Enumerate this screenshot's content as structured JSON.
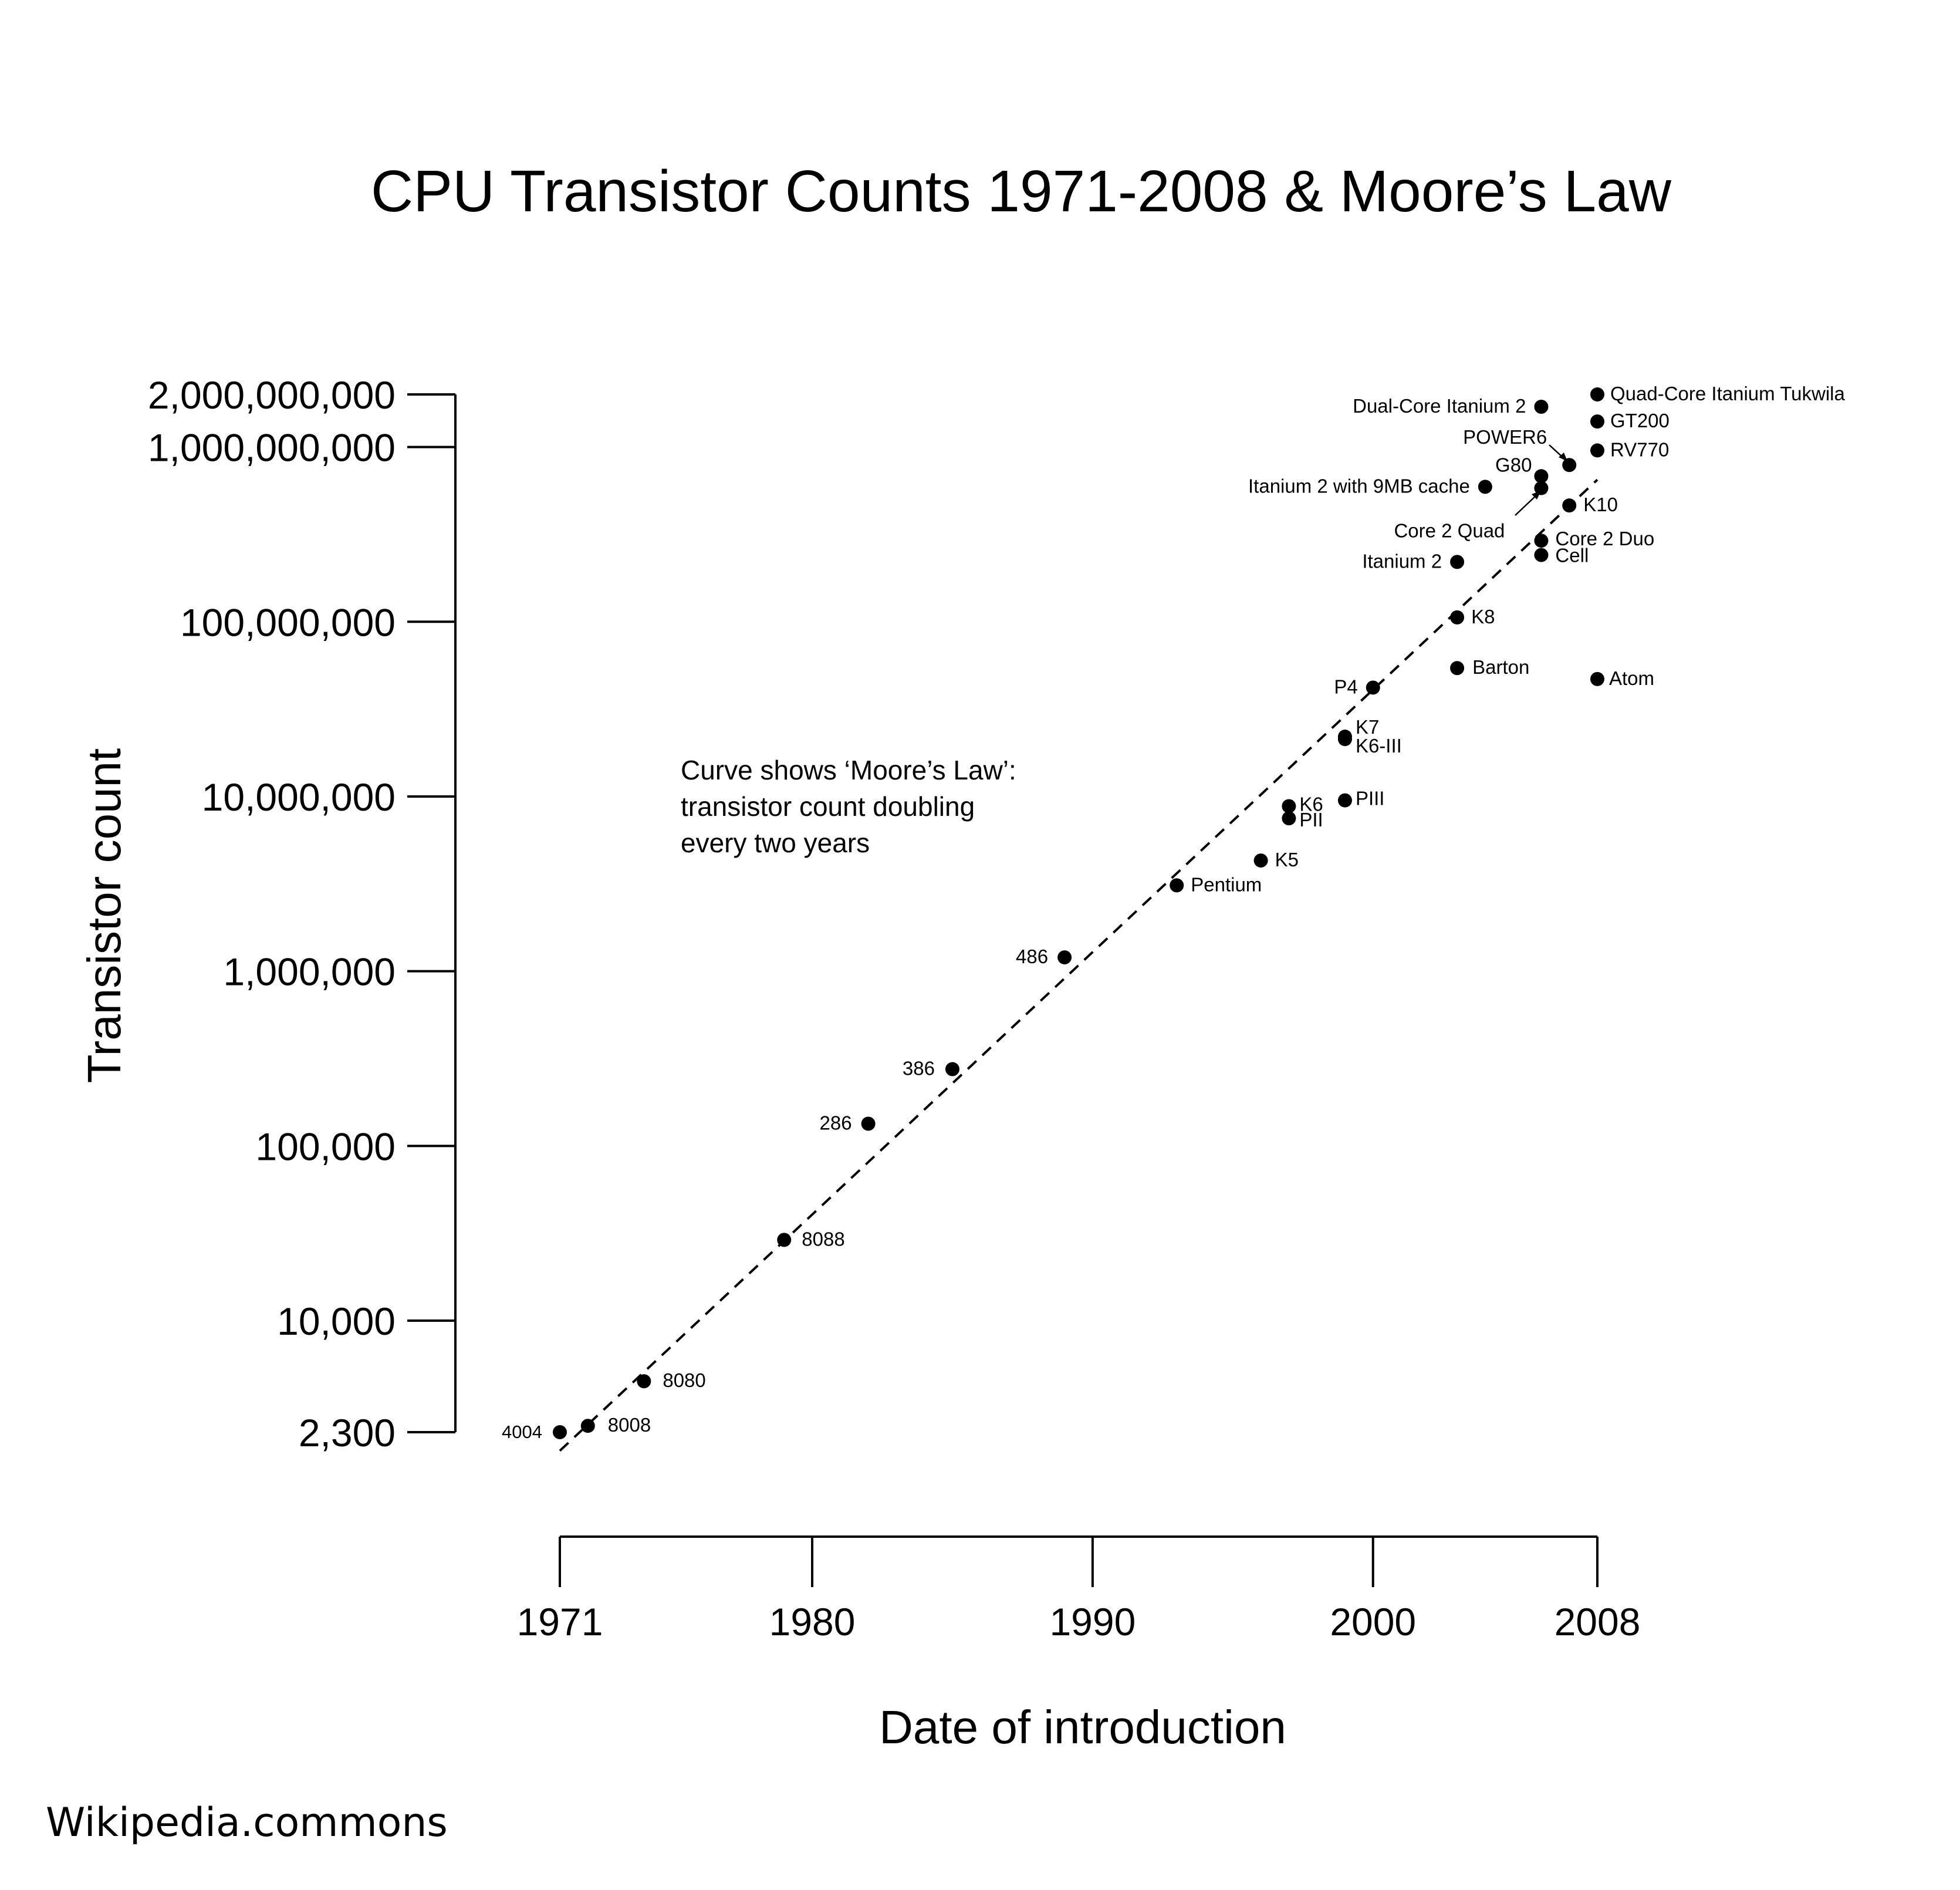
{
  "chart_data": {
    "type": "scatter",
    "title": "CPU Transistor Counts 1971-2008 & Moore’s Law",
    "xlabel": "Date of introduction",
    "ylabel": "Transistor count",
    "y_scale": "log",
    "xlim": [
      1971,
      2008
    ],
    "ylim": [
      2300,
      2000000000
    ],
    "x_ticks": [
      1971,
      1980,
      1990,
      2000,
      2008
    ],
    "x_tick_labels": [
      "1971",
      "1980",
      "1990",
      "2000",
      "2008"
    ],
    "y_ticks": [
      2300,
      10000,
      100000,
      1000000,
      10000000,
      100000000,
      1000000000,
      2000000000
    ],
    "y_tick_labels": [
      "2,300",
      "10,000",
      "100,000",
      "1,000,000",
      "10,000,000",
      "100,000,000",
      "1,000,000,000",
      "2,000,000,000"
    ],
    "annotation": [
      "Curve shows ‘Moore’s Law’:",
      "transistor count doubling",
      "every two years"
    ],
    "trend_line": {
      "style": "dashed",
      "from": {
        "x": 1971,
        "y": 1800
      },
      "to": {
        "x": 2008,
        "y": 650000000
      }
    },
    "points": [
      {
        "label": "4004",
        "x": 1971.0,
        "y": 2300
      },
      {
        "label": "8008",
        "x": 1972.0,
        "y": 2500
      },
      {
        "label": "8080",
        "x": 1974.0,
        "y": 4500
      },
      {
        "label": "8088",
        "x": 1979.0,
        "y": 29000
      },
      {
        "label": "286",
        "x": 1982.0,
        "y": 134000
      },
      {
        "label": "386",
        "x": 1985.0,
        "y": 275000
      },
      {
        "label": "486",
        "x": 1989.0,
        "y": 1200000
      },
      {
        "label": "Pentium",
        "x": 1993.0,
        "y": 3100000
      },
      {
        "label": "K5",
        "x": 1996.0,
        "y": 4300000
      },
      {
        "label": "K6",
        "x": 1997.0,
        "y": 8800000
      },
      {
        "label": "PII",
        "x": 1997.0,
        "y": 7500000
      },
      {
        "label": "PIII",
        "x": 1999.0,
        "y": 9500000
      },
      {
        "label": "K7",
        "x": 1999.0,
        "y": 22000000
      },
      {
        "label": "K6-III",
        "x": 1999.0,
        "y": 21300000
      },
      {
        "label": "P4",
        "x": 2000.0,
        "y": 42000000
      },
      {
        "label": "Barton",
        "x": 2003.0,
        "y": 54300000
      },
      {
        "label": "K8",
        "x": 2003.0,
        "y": 105900000
      },
      {
        "label": "Itanium 2",
        "x": 2003.0,
        "y": 220000000
      },
      {
        "label": "Itanium 2 with 9MB cache",
        "x": 2004.0,
        "y": 592000000
      },
      {
        "label": "Cell",
        "x": 2006.0,
        "y": 241000000
      },
      {
        "label": "Core 2 Duo",
        "x": 2006.0,
        "y": 291000000
      },
      {
        "label": "Core 2 Quad",
        "x": 2006.0,
        "y": 582000000
      },
      {
        "label": "G80",
        "x": 2006.0,
        "y": 681000000
      },
      {
        "label": "Dual-Core Itanium 2",
        "x": 2006.0,
        "y": 1700000000
      },
      {
        "label": "POWER6",
        "x": 2007.0,
        "y": 789000000
      },
      {
        "label": "K10",
        "x": 2007.0,
        "y": 463000000
      },
      {
        "label": "Atom",
        "x": 2008.0,
        "y": 47000000
      },
      {
        "label": "RV770",
        "x": 2008.0,
        "y": 956000000
      },
      {
        "label": "GT200",
        "x": 2008.0,
        "y": 1400000000
      },
      {
        "label": "Quad-Core Itanium Tukwila",
        "x": 2008.0,
        "y": 2000000000
      }
    ]
  },
  "credit": "Wikipedia.commons"
}
